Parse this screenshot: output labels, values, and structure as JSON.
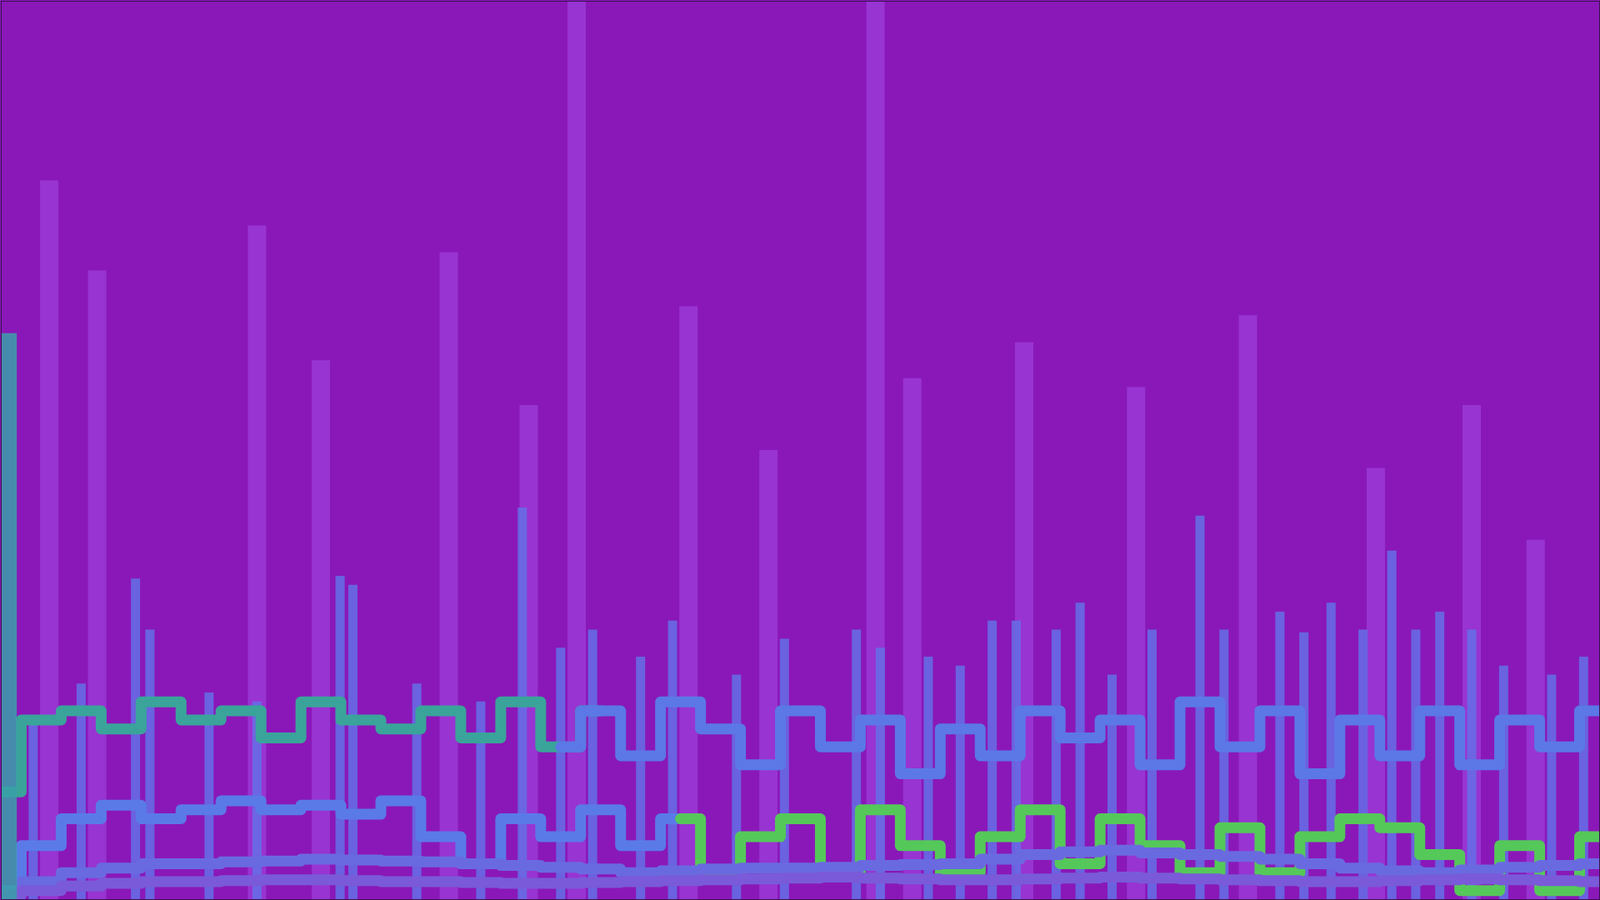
{
  "chart_data": {
    "type": "line",
    "x": [
      0,
      2.5,
      5,
      7.5,
      10,
      12.5,
      15,
      17.5,
      20,
      22.5,
      25,
      27.5,
      30,
      32.5,
      35,
      37.5,
      40,
      42.5,
      45,
      47.5,
      50,
      52.5,
      55,
      57.5,
      60,
      62.5,
      65,
      67.5,
      70,
      72.5,
      75,
      77.5,
      80,
      82.5,
      85,
      87.5,
      90,
      92.5,
      95,
      97.5,
      100
    ],
    "xlim": [
      0,
      100
    ],
    "ylim": [
      0,
      100
    ],
    "tick_labels": false,
    "grid": false,
    "series": [
      {
        "type": "bar",
        "color": "#9a3ad6",
        "x": [
          3,
          6,
          16,
          20,
          28,
          33,
          36,
          43,
          48,
          54.7,
          57,
          64,
          71,
          78,
          86,
          92,
          96
        ],
        "values": [
          80,
          70,
          75,
          60,
          72,
          55,
          100,
          66,
          50,
          100,
          58,
          62,
          57,
          65,
          48,
          55,
          40
        ]
      },
      {
        "type": "bar",
        "color": "#6470e6",
        "x": [
          2,
          5,
          8.4,
          9.3,
          13,
          16,
          21.2,
          22,
          26,
          30,
          32.6,
          35,
          37,
          40,
          42,
          46,
          49,
          53.5,
          55,
          58,
          60,
          62,
          63.5,
          66,
          67.5,
          69.5,
          72,
          75,
          76.5,
          80,
          81.5,
          83.2,
          85.2,
          87,
          88.5,
          90,
          92,
          94,
          97,
          99
        ],
        "values": [
          20,
          24,
          35.7,
          30,
          23,
          22,
          36,
          35,
          24,
          22,
          43.6,
          28,
          30,
          27,
          31,
          25,
          29,
          30,
          28,
          27,
          26,
          31,
          31,
          30,
          33,
          25,
          30,
          42.7,
          30,
          32,
          29.7,
          33,
          30,
          38.8,
          30,
          32,
          30,
          26,
          25,
          27
        ]
      },
      {
        "type": "line",
        "color": "#3aa49a",
        "values": [
          12,
          20,
          21,
          19,
          22,
          20,
          21,
          18,
          22,
          20,
          19,
          21,
          18,
          22,
          17,
          21,
          null,
          null,
          null,
          null,
          null,
          null,
          null,
          null,
          null,
          null,
          null,
          null,
          null,
          null,
          null,
          null,
          null,
          null,
          null,
          null,
          null,
          null,
          null,
          null,
          null
        ]
      },
      {
        "type": "line",
        "color": "#5b78e6",
        "values": [
          null,
          null,
          null,
          null,
          null,
          null,
          null,
          null,
          null,
          null,
          null,
          null,
          null,
          null,
          17,
          21,
          16,
          22,
          19,
          15,
          21,
          17,
          20,
          14,
          19,
          16,
          21,
          18,
          20,
          15,
          22,
          17,
          21,
          14,
          20,
          16,
          21,
          15,
          20,
          17,
          21
        ]
      },
      {
        "type": "line",
        "color": "#5a7ae8",
        "values": [
          1,
          6,
          9,
          10.5,
          9,
          10,
          11,
          10,
          10.5,
          9.5,
          11,
          7,
          4,
          9,
          7,
          10,
          6,
          9,
          null,
          null,
          null,
          null,
          null,
          null,
          null,
          null,
          null,
          null,
          null,
          null,
          null,
          null,
          null,
          null,
          null,
          null,
          null,
          null,
          null,
          null,
          null
        ]
      },
      {
        "type": "line",
        "color": "#55c85a",
        "values": [
          null,
          null,
          null,
          null,
          null,
          null,
          null,
          null,
          null,
          null,
          null,
          null,
          null,
          null,
          null,
          null,
          null,
          9,
          3,
          7,
          9,
          3,
          10,
          6,
          3,
          7,
          10,
          4,
          9,
          6,
          3,
          8,
          3,
          7,
          9,
          8,
          5,
          1,
          6,
          1,
          7
        ]
      },
      {
        "type": "line",
        "color": "#6a6ae0",
        "values": [
          0.5,
          2,
          3,
          3.5,
          4,
          4,
          4.2,
          4.3,
          4.5,
          4.4,
          4.3,
          4.2,
          4,
          3.8,
          3.6,
          3.4,
          3,
          3.2,
          3.4,
          3.5,
          3.5,
          3.6,
          3.8,
          3.9,
          4,
          4.5,
          5,
          5.3,
          5.5,
          5.2,
          5,
          4.8,
          4.5,
          4,
          3.5,
          3.2,
          3,
          3.3,
          3.6,
          3.8,
          4
        ]
      },
      {
        "type": "line",
        "color": "#7a5ad8",
        "values": [
          0.5,
          1,
          1.5,
          1.8,
          2,
          2,
          2.1,
          2.2,
          2.2,
          2.1,
          2,
          2,
          1.9,
          1.8,
          1.8,
          1.9,
          2,
          2.1,
          2.2,
          2.3,
          2.4,
          2.5,
          2.4,
          2.3,
          2.2,
          2.2,
          2.3,
          2.4,
          2.5,
          2.4,
          2.3,
          2.2,
          2.1,
          2,
          2,
          2.1,
          2.2,
          2.3,
          2.2,
          2.1,
          2
        ]
      },
      {
        "type": "bar",
        "color": "#3aa0a8",
        "x": [
          0.4
        ],
        "values": [
          63
        ]
      }
    ]
  }
}
